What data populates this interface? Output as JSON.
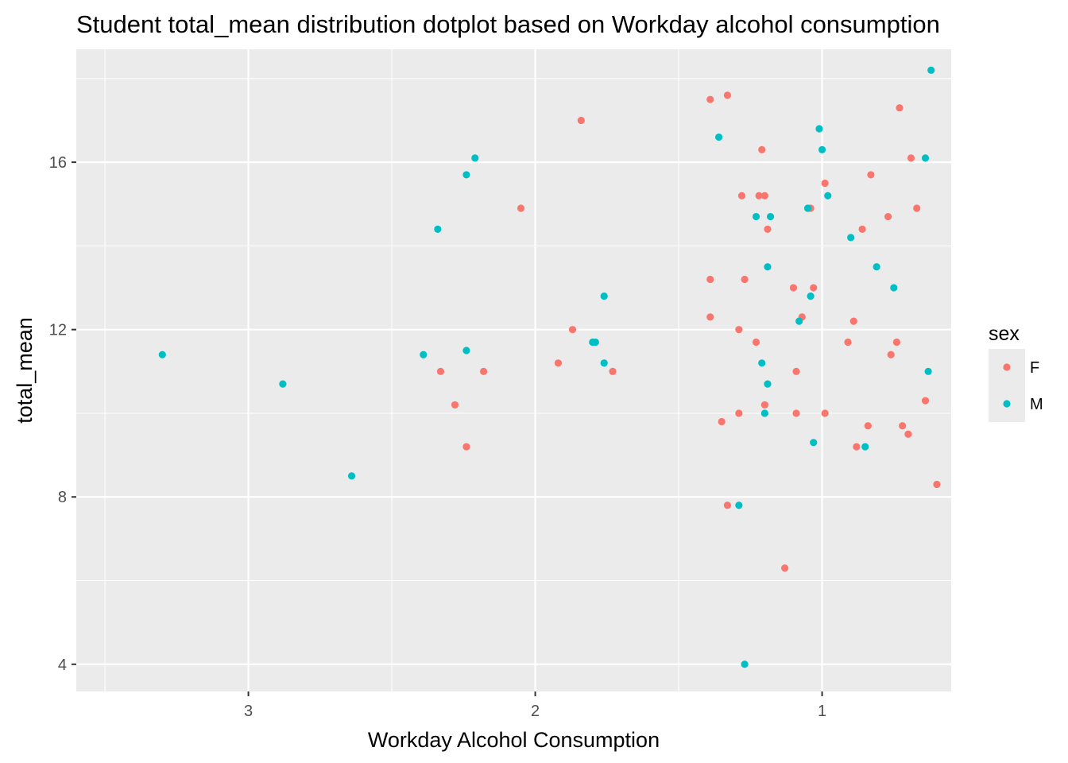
{
  "chart_data": {
    "type": "scatter",
    "title": "Student total_mean distribution dotplot based on Workday alcohol consumption",
    "xlabel": "Workday Alcohol Consumption",
    "ylabel": "total_mean",
    "x_reversed": true,
    "xlim": [
      0.55,
      3.6
    ],
    "ylim": [
      3.35,
      18.7
    ],
    "x_ticks": [
      "3",
      "2",
      "1"
    ],
    "x_tick_values": [
      3,
      2,
      1
    ],
    "y_ticks": [
      "4",
      "8",
      "12",
      "16"
    ],
    "y_tick_values": [
      4,
      8,
      12,
      16
    ],
    "grid": true,
    "legend": {
      "title": "sex",
      "position": "right",
      "entries": [
        {
          "label": "F",
          "color": "#F8766D"
        },
        {
          "label": "M",
          "color": "#00BFC4"
        }
      ]
    },
    "series": [
      {
        "name": "F",
        "color": "#F8766D",
        "points": [
          [
            1.39,
            17.5
          ],
          [
            1.33,
            17.6
          ],
          [
            1.84,
            17.0
          ],
          [
            1.21,
            16.3
          ],
          [
            0.73,
            17.3
          ],
          [
            0.69,
            16.1
          ],
          [
            0.99,
            15.5
          ],
          [
            0.83,
            15.7
          ],
          [
            1.28,
            15.2
          ],
          [
            1.22,
            15.2
          ],
          [
            1.2,
            15.2
          ],
          [
            2.05,
            14.9
          ],
          [
            1.04,
            14.9
          ],
          [
            0.67,
            14.9
          ],
          [
            0.77,
            14.7
          ],
          [
            1.19,
            14.4
          ],
          [
            0.86,
            14.4
          ],
          [
            1.39,
            13.2
          ],
          [
            1.27,
            13.2
          ],
          [
            1.1,
            13.0
          ],
          [
            1.03,
            13.0
          ],
          [
            1.07,
            12.3
          ],
          [
            1.39,
            12.3
          ],
          [
            1.87,
            12.0
          ],
          [
            1.29,
            12.0
          ],
          [
            0.89,
            12.2
          ],
          [
            1.23,
            11.7
          ],
          [
            0.91,
            11.7
          ],
          [
            0.74,
            11.7
          ],
          [
            0.76,
            11.4
          ],
          [
            1.92,
            11.2
          ],
          [
            1.73,
            11.0
          ],
          [
            2.33,
            11.0
          ],
          [
            2.18,
            11.0
          ],
          [
            1.09,
            11.0
          ],
          [
            2.28,
            10.2
          ],
          [
            1.2,
            10.2
          ],
          [
            0.64,
            10.3
          ],
          [
            1.29,
            10.0
          ],
          [
            1.09,
            10.0
          ],
          [
            0.99,
            10.0
          ],
          [
            1.35,
            9.8
          ],
          [
            0.72,
            9.7
          ],
          [
            0.84,
            9.7
          ],
          [
            0.7,
            9.5
          ],
          [
            2.24,
            9.2
          ],
          [
            0.88,
            9.2
          ],
          [
            0.6,
            8.3
          ],
          [
            1.33,
            7.8
          ],
          [
            1.13,
            6.3
          ]
        ]
      },
      {
        "name": "M",
        "color": "#00BFC4",
        "points": [
          [
            0.62,
            18.2
          ],
          [
            1.36,
            16.6
          ],
          [
            1.01,
            16.8
          ],
          [
            1.0,
            16.3
          ],
          [
            0.64,
            16.1
          ],
          [
            2.21,
            16.1
          ],
          [
            2.24,
            15.7
          ],
          [
            0.98,
            15.2
          ],
          [
            1.05,
            14.9
          ],
          [
            1.23,
            14.7
          ],
          [
            1.18,
            14.7
          ],
          [
            2.34,
            14.4
          ],
          [
            0.9,
            14.2
          ],
          [
            1.19,
            13.5
          ],
          [
            0.81,
            13.5
          ],
          [
            0.75,
            13.0
          ],
          [
            1.04,
            12.8
          ],
          [
            1.76,
            12.8
          ],
          [
            1.08,
            12.2
          ],
          [
            1.8,
            11.7
          ],
          [
            1.79,
            11.7
          ],
          [
            2.24,
            11.5
          ],
          [
            2.39,
            11.4
          ],
          [
            3.3,
            11.4
          ],
          [
            1.76,
            11.2
          ],
          [
            1.21,
            11.2
          ],
          [
            0.63,
            11.0
          ],
          [
            2.88,
            10.7
          ],
          [
            1.19,
            10.7
          ],
          [
            1.2,
            10.0
          ],
          [
            1.03,
            9.3
          ],
          [
            0.85,
            9.2
          ],
          [
            2.64,
            8.5
          ],
          [
            1.29,
            7.8
          ],
          [
            1.27,
            4.0
          ]
        ]
      }
    ]
  }
}
